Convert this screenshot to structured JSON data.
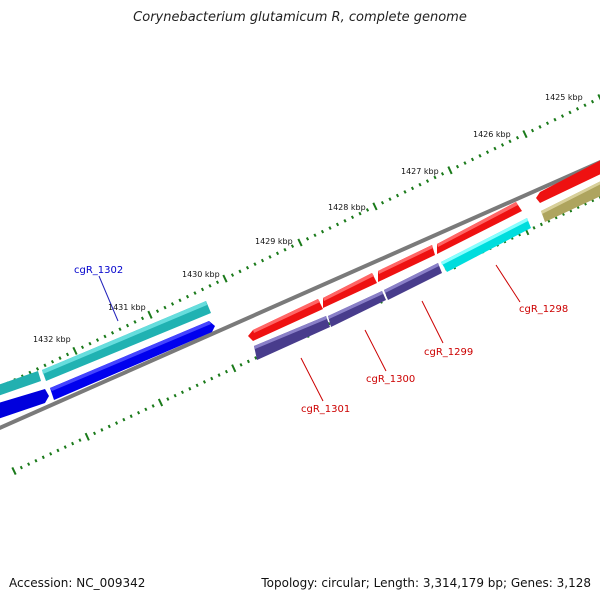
{
  "title": "Corynebacterium glutamicum R, complete genome",
  "footer": {
    "accession": "Accession: NC_009342",
    "info": "Topology: circular; Length: 3,314,179 bp; Genes: 3,128"
  },
  "ticks": [
    "1425 kbp",
    "1426 kbp",
    "1427 kbp",
    "1428 kbp",
    "1429 kbp",
    "1430 kbp",
    "1431 kbp",
    "1432 kbp"
  ],
  "genes": [
    {
      "name": "cgR_1298",
      "color": "#dd0000"
    },
    {
      "name": "cgR_1299",
      "color": "#dd0000"
    },
    {
      "name": "cgR_1300",
      "color": "#dd0000"
    },
    {
      "name": "cgR_1301",
      "color": "#dd0000"
    },
    {
      "name": "cgR_1302",
      "color": "#0000cc"
    }
  ],
  "colors": {
    "forward_cds": "#ff1111",
    "reverse_cds": "#0000ee",
    "rna_cyan": "#00dddd",
    "teal": "#22aaaa",
    "slate": "#4a3f8f",
    "olive": "#b5ad6a",
    "backbone": "#808080",
    "tick_green": "#1a7a1a"
  }
}
